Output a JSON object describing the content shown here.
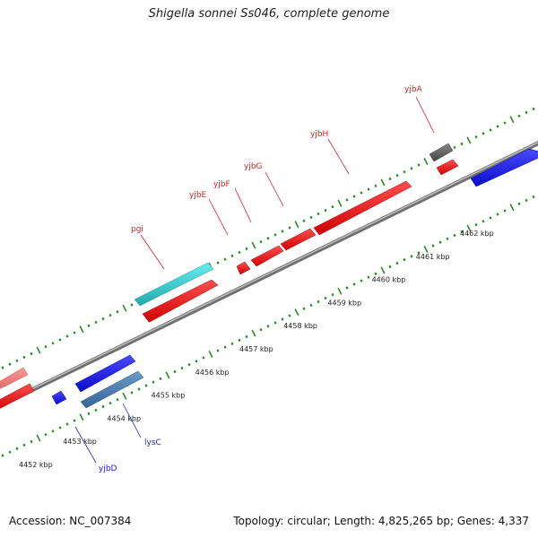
{
  "title": "Shigella sonnei Ss046, complete genome",
  "footer": {
    "accession": "Accession: NC_007384",
    "topology": "Topology: circular; Length: 4,825,265 bp; Genes: 4,337"
  },
  "ruler_ticks": [
    "4452 kbp",
    "4453 kbp",
    "4454 kbp",
    "4455 kbp",
    "4456 kbp",
    "4457 kbp",
    "4458 kbp",
    "4459 kbp",
    "4460 kbp",
    "4461 kbp",
    "4462 kbp"
  ],
  "genes": [
    {
      "name": "pgi",
      "strand": "forward",
      "color": "#33cccc"
    },
    {
      "name": "yjbE",
      "strand": "forward",
      "color": "#ff2020"
    },
    {
      "name": "yjbF",
      "strand": "forward",
      "color": "#ff2020"
    },
    {
      "name": "yjbG",
      "strand": "forward",
      "color": "#ff2020"
    },
    {
      "name": "yjbH",
      "strand": "forward",
      "color": "#ff2020"
    },
    {
      "name": "yjbA",
      "strand": "forward",
      "color": "#666666"
    },
    {
      "name": "lysC",
      "strand": "reverse",
      "color": "#4477aa"
    },
    {
      "name": "yjbD",
      "strand": "reverse",
      "color": "#1a1aee"
    }
  ],
  "colors": {
    "forward_label": "#cc2222",
    "reverse_label": "#2222cc",
    "backbone": "#888888",
    "ruler": "#228b22"
  }
}
